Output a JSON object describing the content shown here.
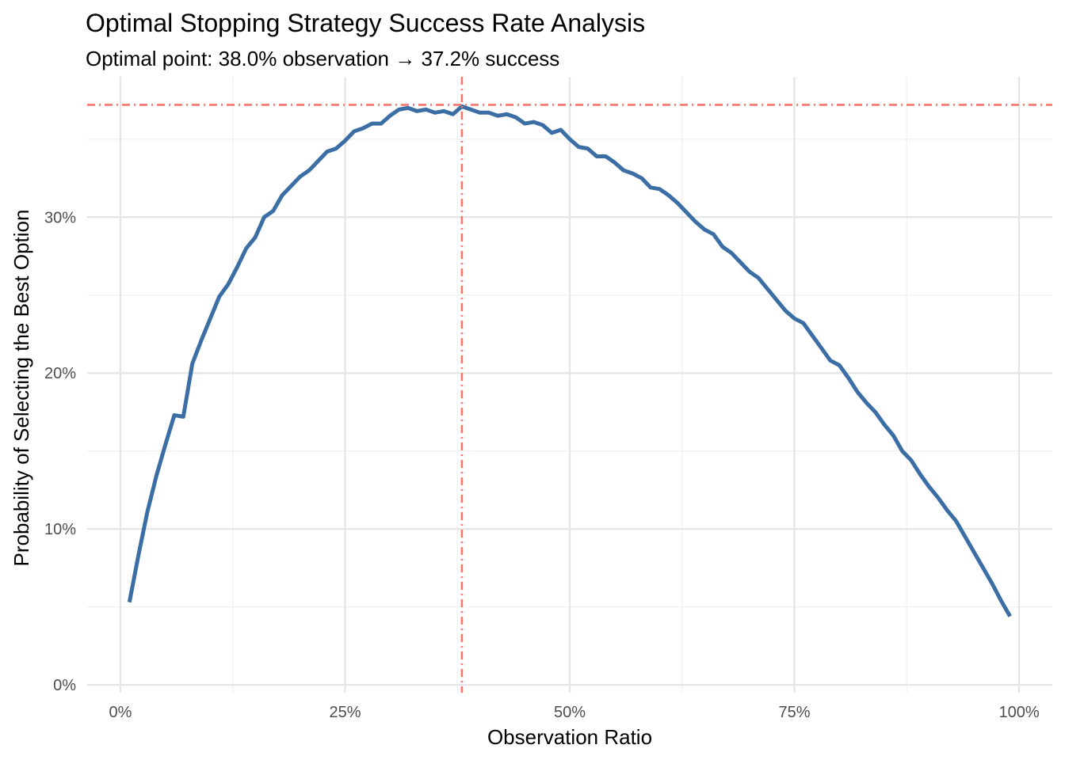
{
  "chart_data": {
    "type": "line",
    "title": "Optimal Stopping Strategy Success Rate Analysis",
    "subtitle": "Optimal point: 38.0% observation → 37.2% success",
    "xlabel": "Observation Ratio",
    "ylabel": "Probability of Selecting the Best Option",
    "xlim": [
      -0.037,
      1.037
    ],
    "ylim": [
      -0.005,
      0.39
    ],
    "x_ticks": [
      {
        "value": 0,
        "label": "0%"
      },
      {
        "value": 0.25,
        "label": "25%"
      },
      {
        "value": 0.5,
        "label": "50%"
      },
      {
        "value": 0.75,
        "label": "75%"
      },
      {
        "value": 1.0,
        "label": "100%"
      }
    ],
    "x_minor_ticks": [
      0.125,
      0.375,
      0.625,
      0.875
    ],
    "y_ticks": [
      {
        "value": 0,
        "label": "0%"
      },
      {
        "value": 0.1,
        "label": "10%"
      },
      {
        "value": 0.2,
        "label": "20%"
      },
      {
        "value": 0.3,
        "label": "30%"
      }
    ],
    "y_minor_ticks": [
      0.05,
      0.15,
      0.25,
      0.35
    ],
    "grid": true,
    "line_color": "#3b6ea5",
    "reference_color": "#f8766d",
    "series": [
      {
        "x": [
          0.01,
          0.02,
          0.03,
          0.04,
          0.05,
          0.06,
          0.07,
          0.08,
          0.09,
          0.1,
          0.11,
          0.12,
          0.13,
          0.14,
          0.15,
          0.16,
          0.17,
          0.18,
          0.19,
          0.2,
          0.21,
          0.22,
          0.23,
          0.24,
          0.25,
          0.26,
          0.27,
          0.28,
          0.29,
          0.3,
          0.31,
          0.32,
          0.33,
          0.34,
          0.35,
          0.36,
          0.37,
          0.38,
          0.39,
          0.4,
          0.41,
          0.42,
          0.43,
          0.44,
          0.45,
          0.46,
          0.47,
          0.48,
          0.49,
          0.5,
          0.51,
          0.52,
          0.53,
          0.54,
          0.55,
          0.56,
          0.57,
          0.58,
          0.59,
          0.6,
          0.61,
          0.62,
          0.63,
          0.64,
          0.65,
          0.66,
          0.67,
          0.68,
          0.69,
          0.7,
          0.71,
          0.72,
          0.73,
          0.74,
          0.75,
          0.76,
          0.77,
          0.78,
          0.79,
          0.8,
          0.81,
          0.82,
          0.83,
          0.84,
          0.85,
          0.86,
          0.87,
          0.88,
          0.89,
          0.9,
          0.91,
          0.92,
          0.93,
          0.94,
          0.95,
          0.96,
          0.97,
          0.98,
          0.99
        ],
        "values": [
          0.053,
          0.083,
          0.111,
          0.134,
          0.154,
          0.173,
          0.172,
          0.206,
          0.221,
          0.235,
          0.249,
          0.257,
          0.268,
          0.28,
          0.287,
          0.3,
          0.304,
          0.314,
          0.32,
          0.326,
          0.33,
          0.336,
          0.342,
          0.344,
          0.349,
          0.355,
          0.357,
          0.36,
          0.36,
          0.365,
          0.369,
          0.37,
          0.368,
          0.369,
          0.367,
          0.368,
          0.366,
          0.371,
          0.369,
          0.367,
          0.367,
          0.365,
          0.366,
          0.364,
          0.36,
          0.361,
          0.359,
          0.354,
          0.356,
          0.35,
          0.345,
          0.344,
          0.339,
          0.339,
          0.335,
          0.33,
          0.328,
          0.325,
          0.319,
          0.318,
          0.314,
          0.309,
          0.303,
          0.297,
          0.292,
          0.289,
          0.281,
          0.277,
          0.271,
          0.265,
          0.261,
          0.254,
          0.247,
          0.24,
          0.235,
          0.232,
          0.224,
          0.216,
          0.208,
          0.205,
          0.197,
          0.188,
          0.181,
          0.175,
          0.167,
          0.16,
          0.15,
          0.144,
          0.135,
          0.127,
          0.12,
          0.112,
          0.105,
          0.095,
          0.085,
          0.075,
          0.065,
          0.054,
          0.044
        ]
      }
    ],
    "reference_lines": {
      "vertical_x": 0.38,
      "horizontal_y": 0.372
    }
  }
}
